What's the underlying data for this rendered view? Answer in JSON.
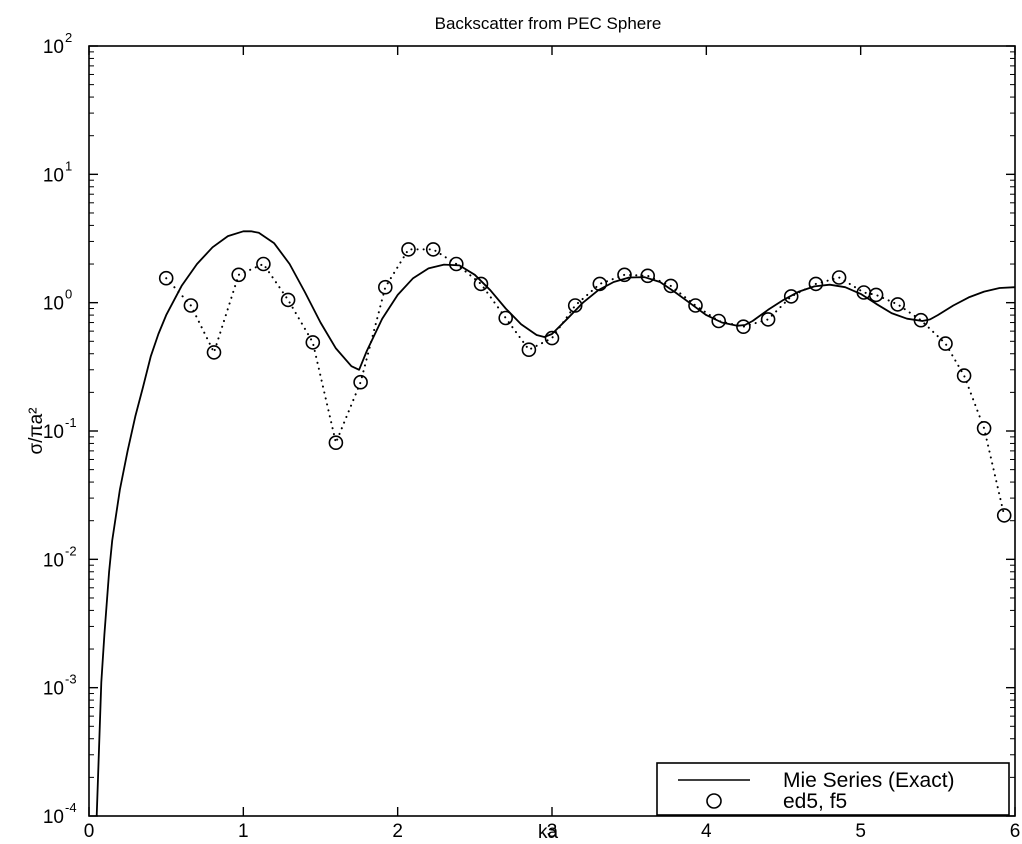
{
  "chart_data": {
    "type": "line",
    "title": "Backscatter from PEC Sphere",
    "xlabel": "ka",
    "ylabel": "σ/πa²",
    "xlim": [
      0,
      6
    ],
    "ylim": [
      0.0001,
      100
    ],
    "yscale": "log",
    "grid": false,
    "legend_position": "bottom-right",
    "x_ticks": [
      "0",
      "1",
      "2",
      "3",
      "4",
      "5",
      "6"
    ],
    "y_ticks": [
      {
        "base": "10",
        "exp": "-4"
      },
      {
        "base": "10",
        "exp": "-3"
      },
      {
        "base": "10",
        "exp": "-2"
      },
      {
        "base": "10",
        "exp": "-1"
      },
      {
        "base": "10",
        "exp": "0"
      },
      {
        "base": "10",
        "exp": "1"
      },
      {
        "base": "10",
        "exp": "2"
      }
    ],
    "series": [
      {
        "name": "Mie Series (Exact)",
        "style": "solid-line",
        "x": [
          0.05,
          0.08,
          0.1,
          0.13,
          0.15,
          0.2,
          0.25,
          0.3,
          0.35,
          0.4,
          0.45,
          0.5,
          0.6,
          0.7,
          0.8,
          0.9,
          1.0,
          1.05,
          1.1,
          1.2,
          1.3,
          1.4,
          1.5,
          1.6,
          1.7,
          1.75,
          1.8,
          1.9,
          2.0,
          2.1,
          2.2,
          2.3,
          2.4,
          2.5,
          2.6,
          2.7,
          2.8,
          2.9,
          2.95,
          3.0,
          3.1,
          3.2,
          3.3,
          3.4,
          3.5,
          3.6,
          3.7,
          3.8,
          3.9,
          4.0,
          4.1,
          4.2,
          4.25,
          4.3,
          4.4,
          4.5,
          4.6,
          4.7,
          4.8,
          4.9,
          5.0,
          5.1,
          5.2,
          5.3,
          5.4,
          5.45,
          5.5,
          5.6,
          5.7,
          5.8,
          5.9,
          6.0
        ],
        "y": [
          0.0001,
          0.0011,
          0.0026,
          0.008,
          0.014,
          0.035,
          0.07,
          0.13,
          0.22,
          0.38,
          0.57,
          0.8,
          1.35,
          2.0,
          2.7,
          3.3,
          3.6,
          3.6,
          3.5,
          2.9,
          2.0,
          1.2,
          0.7,
          0.44,
          0.32,
          0.3,
          0.42,
          0.75,
          1.15,
          1.55,
          1.85,
          1.98,
          1.95,
          1.65,
          1.25,
          0.9,
          0.68,
          0.56,
          0.54,
          0.57,
          0.75,
          1.0,
          1.25,
          1.45,
          1.57,
          1.58,
          1.45,
          1.2,
          0.98,
          0.8,
          0.7,
          0.66,
          0.67,
          0.72,
          0.88,
          1.05,
          1.22,
          1.34,
          1.38,
          1.32,
          1.17,
          0.98,
          0.83,
          0.75,
          0.72,
          0.74,
          0.8,
          0.95,
          1.1,
          1.22,
          1.3,
          1.32
        ]
      },
      {
        "name": "ed5, f5",
        "style": "dotted-line-circles",
        "x": [
          0.5,
          0.66,
          0.81,
          0.97,
          1.13,
          1.29,
          1.45,
          1.6,
          1.76,
          1.92,
          2.07,
          2.23,
          2.38,
          2.54,
          2.7,
          2.85,
          3.0,
          3.15,
          3.31,
          3.47,
          3.62,
          3.77,
          3.93,
          4.08,
          4.24,
          4.4,
          4.55,
          4.71,
          4.86,
          5.02,
          5.1,
          5.24,
          5.39,
          5.55,
          5.67,
          5.8,
          5.93
        ],
        "y": [
          1.55,
          0.95,
          0.41,
          1.65,
          2.0,
          1.05,
          0.49,
          0.081,
          0.24,
          1.32,
          2.6,
          2.6,
          2.0,
          1.4,
          0.76,
          0.43,
          0.53,
          0.95,
          1.4,
          1.65,
          1.62,
          1.35,
          0.95,
          0.72,
          0.65,
          0.74,
          1.12,
          1.4,
          1.57,
          1.2,
          1.15,
          0.97,
          0.73,
          0.48,
          0.27,
          0.105,
          0.022
        ]
      }
    ]
  }
}
